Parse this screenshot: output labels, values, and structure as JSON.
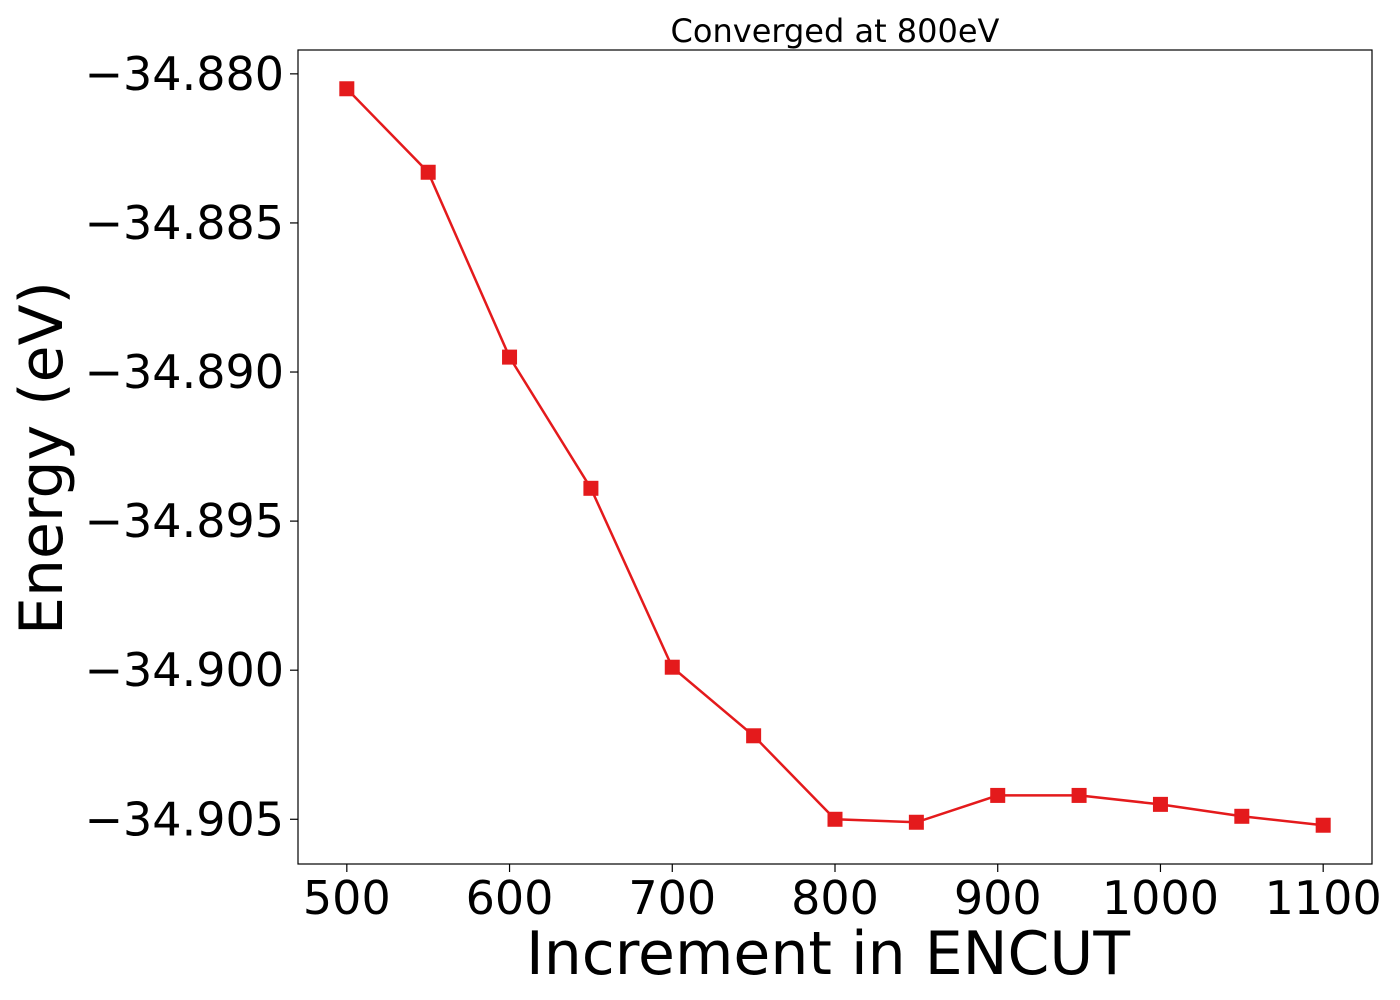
{
  "chart_data": {
    "type": "line",
    "title": "Converged at 800eV",
    "xlabel": "Increment in ENCUT",
    "ylabel": "Energy (eV)",
    "x": [
      500,
      550,
      600,
      650,
      700,
      750,
      800,
      850,
      900,
      950,
      1000,
      1050,
      1100
    ],
    "series": [
      {
        "values": [
          -34.8805,
          -34.8833,
          -34.8895,
          -34.8939,
          -34.8999,
          -34.9022,
          -34.905,
          -34.9051,
          -34.9042,
          -34.9042,
          -34.9045,
          -34.9049,
          -34.9052
        ],
        "color": "#e41a1c",
        "marker": "square"
      }
    ],
    "xlim": [
      470,
      1130
    ],
    "ylim": [
      -34.9065,
      -34.8792
    ],
    "xticks": [
      500,
      600,
      700,
      800,
      900,
      1000,
      1100
    ],
    "xtick_labels": [
      "500",
      "600",
      "700",
      "800",
      "900",
      "1000",
      "1100"
    ],
    "yticks": [
      -34.88,
      -34.885,
      -34.89,
      -34.895,
      -34.9,
      -34.905
    ],
    "ytick_labels": [
      "−34.880",
      "−34.885",
      "−34.890",
      "−34.895",
      "−34.900",
      "−34.905"
    ],
    "grid": false,
    "legend": false
  }
}
